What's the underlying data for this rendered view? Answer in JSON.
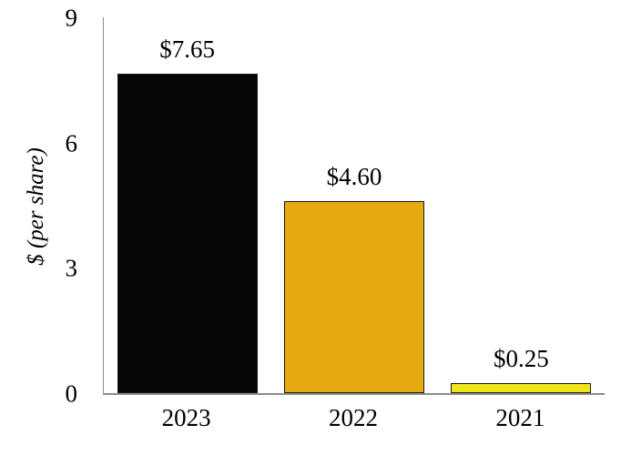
{
  "chart_data": {
    "type": "bar",
    "title": "",
    "xlabel": "",
    "ylabel": "$ (per share)",
    "categories": [
      "2023",
      "2022",
      "2021"
    ],
    "values": [
      7.65,
      4.6,
      0.25
    ],
    "value_labels": [
      "$7.65",
      "$4.60",
      "$0.25"
    ],
    "bar_colors": [
      "#060606",
      "#e6a90f",
      "#f0e51c"
    ],
    "bar_border_color": "#1a1a1a",
    "axis_color": "#8c8c8c",
    "ylim": [
      0,
      9
    ],
    "yticks": [
      9,
      6,
      3,
      0
    ],
    "grid": false,
    "legend": false
  }
}
